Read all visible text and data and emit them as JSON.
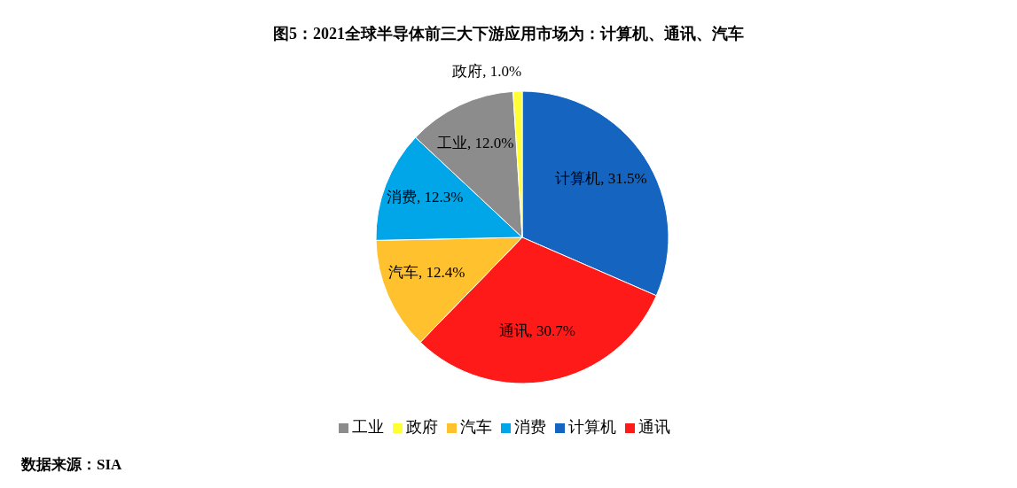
{
  "chart_data": {
    "type": "pie",
    "title": "图5：2021全球半导体前三大下游应用市场为：计算机、通讯、汽车",
    "categories": [
      "计算机",
      "通讯",
      "汽车",
      "消费",
      "工业",
      "政府"
    ],
    "values": [
      31.5,
      30.7,
      12.4,
      12.3,
      12.0,
      1.0
    ],
    "colors": [
      "#1565c0",
      "#ff1a1a",
      "#ffc12e",
      "#00a6e8",
      "#8c8c8c",
      "#ffff33"
    ],
    "value_labels": [
      "计算机, 31.5%",
      "通讯, 30.7%",
      "汽车, 12.4%",
      "消费, 12.3%",
      "工业, 12.0%",
      "政府, 1.0%"
    ],
    "legend": "bottom",
    "annotations": [
      "数据来源：SIA"
    ]
  }
}
